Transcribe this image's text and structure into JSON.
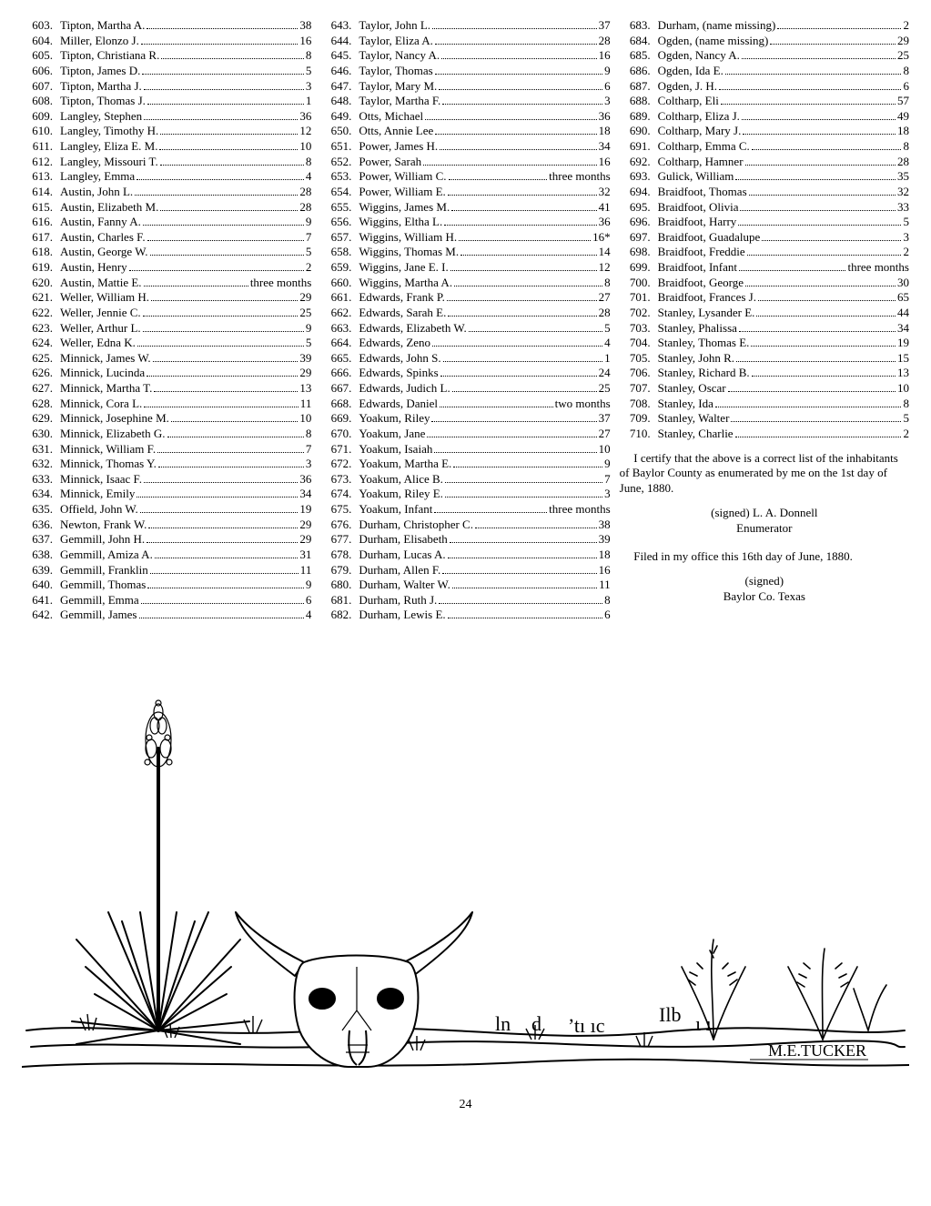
{
  "columns": [
    [
      {
        "n": "603",
        "name": "Tipton, Martha A.",
        "v": "38"
      },
      {
        "n": "604",
        "name": "Miller, Elonzo J.",
        "v": "16"
      },
      {
        "n": "605",
        "name": "Tipton, Christiana R.",
        "v": "8"
      },
      {
        "n": "606",
        "name": "Tipton, James D.",
        "v": "5"
      },
      {
        "n": "607",
        "name": "Tipton, Martha J.",
        "v": "3"
      },
      {
        "n": "608",
        "name": "Tipton, Thomas J.",
        "v": "1"
      },
      {
        "n": "609",
        "name": "Langley, Stephen",
        "v": "36"
      },
      {
        "n": "610",
        "name": "Langley, Timothy H.",
        "v": "12"
      },
      {
        "n": "611",
        "name": "Langley, Eliza E. M.",
        "v": "10"
      },
      {
        "n": "612",
        "name": "Langley, Missouri T.",
        "v": "8"
      },
      {
        "n": "613",
        "name": "Langley, Emma",
        "v": "4"
      },
      {
        "n": "614",
        "name": "Austin, John L.",
        "v": "28"
      },
      {
        "n": "615",
        "name": "Austin, Elizabeth M.",
        "v": "28"
      },
      {
        "n": "616",
        "name": "Austin, Fanny A.",
        "v": "9"
      },
      {
        "n": "617",
        "name": "Austin, Charles F.",
        "v": "7"
      },
      {
        "n": "618",
        "name": "Austin, George W.",
        "v": "5"
      },
      {
        "n": "619",
        "name": "Austin, Henry",
        "v": "2"
      },
      {
        "n": "620",
        "name": "Austin, Mattie E.",
        "v": "three months"
      },
      {
        "n": "621",
        "name": "Weller, William H.",
        "v": "29"
      },
      {
        "n": "622",
        "name": "Weller, Jennie C.",
        "v": "25"
      },
      {
        "n": "623",
        "name": "Weller, Arthur L.",
        "v": "9"
      },
      {
        "n": "624",
        "name": "Weller, Edna K.",
        "v": "5"
      },
      {
        "n": "625",
        "name": "Minnick, James W.",
        "v": "39"
      },
      {
        "n": "626",
        "name": "Minnick, Lucinda",
        "v": "29"
      },
      {
        "n": "627",
        "name": "Minnick, Martha T.",
        "v": "13"
      },
      {
        "n": "628",
        "name": "Minnick, Cora L.",
        "v": "11"
      },
      {
        "n": "629",
        "name": "Minnick, Josephine M.",
        "v": "10"
      },
      {
        "n": "630",
        "name": "Minnick, Elizabeth G.",
        "v": "8"
      },
      {
        "n": "631",
        "name": "Minnick, William F.",
        "v": "7"
      },
      {
        "n": "632",
        "name": "Minnick, Thomas Y.",
        "v": "3"
      },
      {
        "n": "633",
        "name": "Minnick, Isaac F.",
        "v": "36"
      },
      {
        "n": "634",
        "name": "Minnick, Emily",
        "v": "34"
      },
      {
        "n": "635",
        "name": "Offield, John W.",
        "v": "19"
      },
      {
        "n": "636",
        "name": "Newton, Frank W.",
        "v": "29"
      },
      {
        "n": "637",
        "name": "Gemmill, John H.",
        "v": "29"
      },
      {
        "n": "638",
        "name": "Gemmill, Amiza A.",
        "v": "31"
      },
      {
        "n": "639",
        "name": "Gemmill, Franklin",
        "v": "11"
      },
      {
        "n": "640",
        "name": "Gemmill, Thomas",
        "v": "9"
      },
      {
        "n": "641",
        "name": "Gemmill, Emma",
        "v": "6"
      },
      {
        "n": "642",
        "name": "Gemmill, James",
        "v": "4"
      }
    ],
    [
      {
        "n": "643",
        "name": "Taylor, John L.",
        "v": "37"
      },
      {
        "n": "644",
        "name": "Taylor, Eliza A.",
        "v": "28"
      },
      {
        "n": "645",
        "name": "Taylor, Nancy A.",
        "v": "16"
      },
      {
        "n": "646",
        "name": "Taylor, Thomas",
        "v": "9"
      },
      {
        "n": "647",
        "name": "Taylor, Mary M.",
        "v": "6"
      },
      {
        "n": "648",
        "name": "Taylor, Martha F.",
        "v": "3"
      },
      {
        "n": "649",
        "name": "Otts, Michael",
        "v": "36"
      },
      {
        "n": "650",
        "name": "Otts, Annie Lee",
        "v": "18"
      },
      {
        "n": "651",
        "name": "Power, James H.",
        "v": "34"
      },
      {
        "n": "652",
        "name": "Power, Sarah",
        "v": "16"
      },
      {
        "n": "653",
        "name": "Power, William C.",
        "v": "three months"
      },
      {
        "n": "654",
        "name": "Power, William E.",
        "v": "32"
      },
      {
        "n": "655",
        "name": "Wiggins, James M.",
        "v": "41"
      },
      {
        "n": "656",
        "name": "Wiggins, Eltha L.",
        "v": "36"
      },
      {
        "n": "657",
        "name": "Wiggins, William H.",
        "v": "16*"
      },
      {
        "n": "658",
        "name": "Wiggins, Thomas M.",
        "v": "14"
      },
      {
        "n": "659",
        "name": "Wiggins, Jane E. I.",
        "v": "12"
      },
      {
        "n": "660",
        "name": "Wiggins, Martha A.",
        "v": "8"
      },
      {
        "n": "661",
        "name": "Edwards, Frank P.",
        "v": "27"
      },
      {
        "n": "662",
        "name": "Edwards, Sarah E.",
        "v": "28"
      },
      {
        "n": "663",
        "name": "Edwards, Elizabeth W.",
        "v": "5"
      },
      {
        "n": "664",
        "name": "Edwards, Zeno",
        "v": "4"
      },
      {
        "n": "665",
        "name": "Edwards, John S.",
        "v": "1"
      },
      {
        "n": "666",
        "name": "Edwards, Spinks",
        "v": "24"
      },
      {
        "n": "667",
        "name": "Edwards, Judich L.",
        "v": "25"
      },
      {
        "n": "668",
        "name": "Edwards, Daniel",
        "v": "two months"
      },
      {
        "n": "669",
        "name": "Yoakum, Riley",
        "v": "37"
      },
      {
        "n": "670",
        "name": "Yoakum, Jane",
        "v": "27"
      },
      {
        "n": "671",
        "name": "Yoakum, Isaiah",
        "v": "10"
      },
      {
        "n": "672",
        "name": "Yoakum, Martha E.",
        "v": "9"
      },
      {
        "n": "673",
        "name": "Yoakum, Alice B.",
        "v": "7"
      },
      {
        "n": "674",
        "name": "Yoakum, Riley E.",
        "v": "3"
      },
      {
        "n": "675",
        "name": "Yoakum, Infant",
        "v": "three months"
      },
      {
        "n": "676",
        "name": "Durham, Christopher C.",
        "v": "38"
      },
      {
        "n": "677",
        "name": "Durham, Elisabeth",
        "v": "39"
      },
      {
        "n": "678",
        "name": "Durham, Lucas A.",
        "v": "18"
      },
      {
        "n": "679",
        "name": "Durham, Allen F.",
        "v": "16"
      },
      {
        "n": "680",
        "name": "Durham, Walter W.",
        "v": "11"
      },
      {
        "n": "681",
        "name": "Durham, Ruth J.",
        "v": "8"
      },
      {
        "n": "682",
        "name": "Durham, Lewis E.",
        "v": "6"
      }
    ],
    [
      {
        "n": "683",
        "name": "Durham, (name missing)",
        "v": "2"
      },
      {
        "n": "684",
        "name": "Ogden, (name missing)",
        "v": "29"
      },
      {
        "n": "685",
        "name": "Ogden, Nancy A.",
        "v": "25"
      },
      {
        "n": "686",
        "name": "Ogden, Ida E.",
        "v": "8"
      },
      {
        "n": "687",
        "name": "Ogden, J. H.",
        "v": "6"
      },
      {
        "n": "688",
        "name": "Coltharp, Eli",
        "v": "57"
      },
      {
        "n": "689",
        "name": "Coltharp, Eliza J.",
        "v": "49"
      },
      {
        "n": "690",
        "name": "Coltharp, Mary J.",
        "v": "18"
      },
      {
        "n": "691",
        "name": "Coltharp, Emma C.",
        "v": "8"
      },
      {
        "n": "692",
        "name": "Coltharp, Hamner",
        "v": "28"
      },
      {
        "n": "693",
        "name": "Gulick, William",
        "v": "35"
      },
      {
        "n": "694",
        "name": "Braidfoot, Thomas",
        "v": "32"
      },
      {
        "n": "695",
        "name": "Braidfoot, Olivia",
        "v": "33"
      },
      {
        "n": "696",
        "name": "Braidfoot, Harry",
        "v": "5"
      },
      {
        "n": "697",
        "name": "Braidfoot, Guadalupe",
        "v": "3"
      },
      {
        "n": "698",
        "name": "Braidfoot, Freddie",
        "v": "2"
      },
      {
        "n": "699",
        "name": "Braidfoot, Infant",
        "v": "three months"
      },
      {
        "n": "700",
        "name": "Braidfoot, George",
        "v": "30"
      },
      {
        "n": "701",
        "name": "Braidfoot, Frances J.",
        "v": "65"
      },
      {
        "n": "702",
        "name": "Stanley, Lysander E.",
        "v": "44"
      },
      {
        "n": "703",
        "name": "Stanley, Phalissa",
        "v": "34"
      },
      {
        "n": "704",
        "name": "Stanley, Thomas E.",
        "v": "19"
      },
      {
        "n": "705",
        "name": "Stanley, John R.",
        "v": "15"
      },
      {
        "n": "706",
        "name": "Stanley, Richard B.",
        "v": "13"
      },
      {
        "n": "707",
        "name": "Stanley, Oscar",
        "v": "10"
      },
      {
        "n": "708",
        "name": "Stanley, Ida",
        "v": "8"
      },
      {
        "n": "709",
        "name": "Stanley, Walter",
        "v": "5"
      },
      {
        "n": "710",
        "name": "Stanley, Charlie",
        "v": "2"
      }
    ]
  ],
  "certification": "I certify that the above is a correct list of the inhabitants of Baylor County as enumerated by me on the 1st day of June, 1880.",
  "signed1a": "(signed) L. A. Donnell",
  "signed1b": "Enumerator",
  "filed": "Filed in my office this 16th day of June, 1880.",
  "signed2a": "(signed)",
  "signed2b": "Baylor Co. Texas",
  "pageNumber": "24",
  "artist": "M.E.TUCKER"
}
